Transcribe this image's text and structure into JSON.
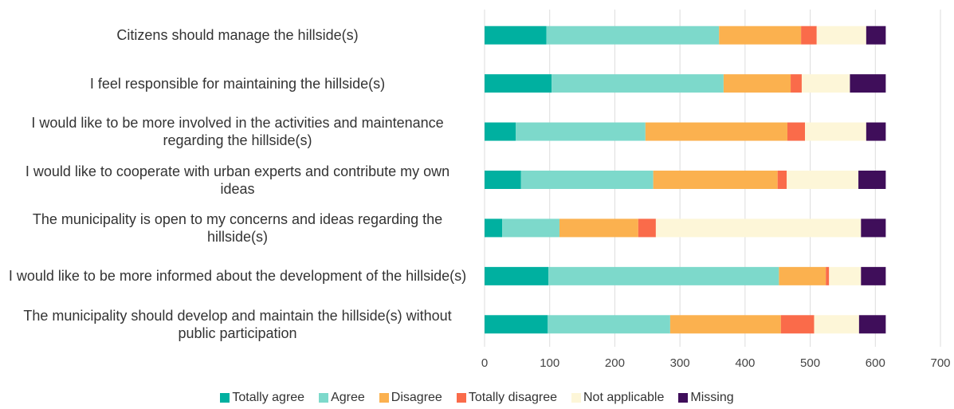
{
  "chart_data": {
    "type": "stacked_barh",
    "categories": [
      "Citizens should manage the hillside(s)",
      "I feel responsible for maintaining the hillside(s)",
      "I would like to be more involved in the activities and maintenance regarding the hillside(s)",
      "I would like to cooperate with urban experts and contribute my own ideas",
      "The municipality is open to my concerns and ideas regarding the hillside(s)",
      "I would like to be more informed about the development of the hillside(s)",
      "The municipality should develop and maintain the hillside(s) without public participation"
    ],
    "series": [
      {
        "name": "Totally agree",
        "color": "#00b0a0",
        "values": [
          95,
          103,
          48,
          56,
          27,
          98,
          97
        ]
      },
      {
        "name": "Agree",
        "color": "#7dd9cb",
        "values": [
          265,
          264,
          199,
          203,
          88,
          354,
          188
        ]
      },
      {
        "name": "Disagree",
        "color": "#fbb14f",
        "values": [
          126,
          103,
          218,
          191,
          121,
          72,
          170
        ]
      },
      {
        "name": "Totally disagree",
        "color": "#fa6b4a",
        "values": [
          24,
          17,
          27,
          14,
          27,
          5,
          51
        ]
      },
      {
        "name": "Not applicable",
        "color": "#fdf6d8",
        "values": [
          76,
          74,
          94,
          110,
          315,
          49,
          69
        ]
      },
      {
        "name": "Missing",
        "color": "#3f0e5a",
        "values": [
          30,
          55,
          30,
          42,
          38,
          38,
          41
        ]
      }
    ],
    "xlim": [
      0,
      700
    ],
    "xticks": [
      0,
      100,
      200,
      300,
      400,
      500,
      600,
      700
    ],
    "grid": true,
    "legend": "bottom"
  }
}
